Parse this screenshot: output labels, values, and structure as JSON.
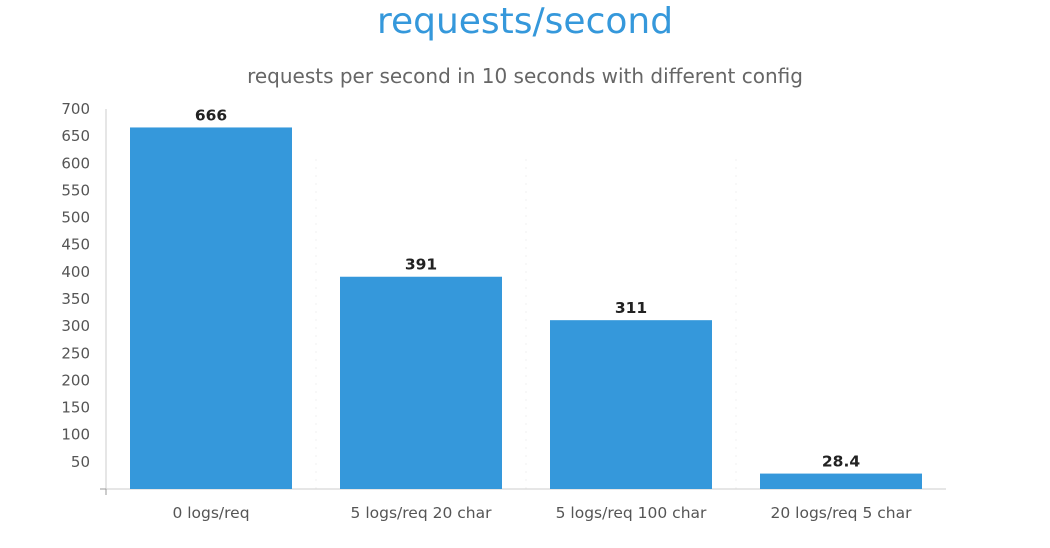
{
  "chart_data": {
    "type": "bar",
    "title": "requests/second",
    "subtitle": "requests per second in 10 seconds with different config",
    "categories": [
      "0 logs/req",
      "5 logs/req 20 char",
      "5 logs/req 100 char",
      "20 logs/req 5 char"
    ],
    "values": [
      666,
      391,
      311,
      28.4
    ],
    "data_labels": [
      "666",
      "391",
      "311",
      "28.4"
    ],
    "xlabel": "",
    "ylabel": "",
    "ylim": [
      0,
      700
    ],
    "yticks": [
      50,
      100,
      150,
      200,
      250,
      300,
      350,
      400,
      450,
      500,
      550,
      600,
      650,
      700
    ],
    "grid": false,
    "legend": "none",
    "bar_color": "#3598db"
  }
}
